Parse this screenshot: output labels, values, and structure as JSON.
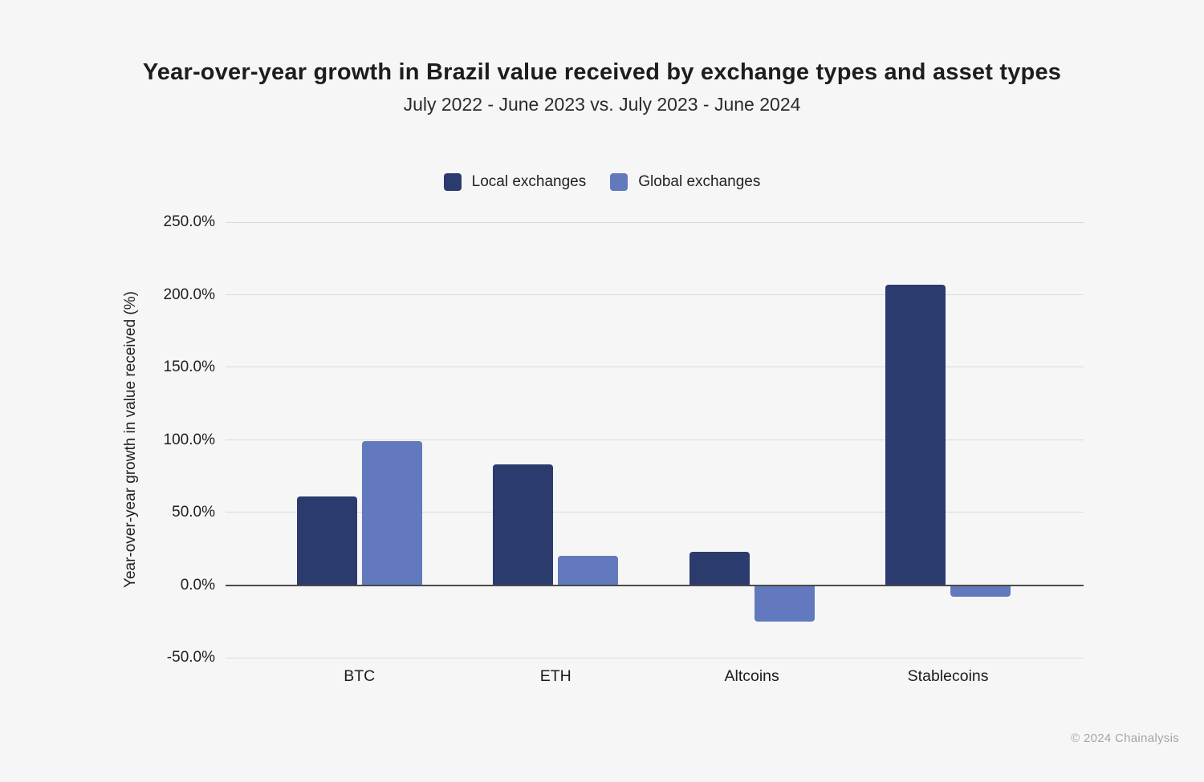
{
  "page": {
    "footer": "© 2024 Chainalysis",
    "background_color": "#f6f6f7"
  },
  "chart_data": {
    "type": "bar",
    "title": "Year-over-year growth in Brazil value received by exchange types and asset types",
    "subtitle": "July 2022 - June 2023 vs. July 2023 - June 2024",
    "categories": [
      "BTC",
      "ETH",
      "Altcoins",
      "Stablecoins"
    ],
    "series": [
      {
        "name": "Local exchanges",
        "color": "#2c3b6d",
        "values": [
          61,
          83,
          23,
          207
        ]
      },
      {
        "name": "Global exchanges",
        "color": "#6379be",
        "values": [
          99,
          20,
          -25,
          -8
        ]
      }
    ],
    "xlabel": "",
    "ylabel": "Year-over-year growth in value received (%)",
    "ylim": [
      -50,
      250
    ],
    "yticks": [
      250,
      200,
      150,
      100,
      50,
      0,
      -50
    ],
    "ytick_suffix": "%",
    "grid": true,
    "zero_line_color": "#4a4a4a",
    "gridline_color": "#dadadb",
    "legend_position": "top-center"
  }
}
